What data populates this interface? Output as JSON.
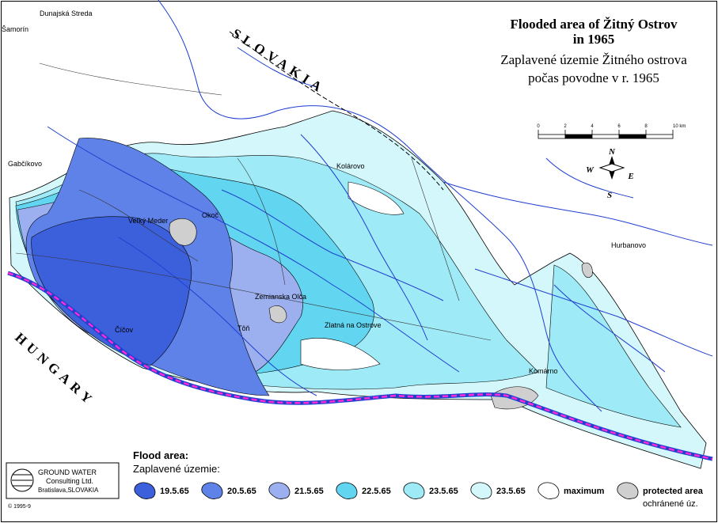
{
  "title": {
    "en_line1": "Flooded area of Žitný Ostrov",
    "en_line2": "in 1965",
    "sk_line1": "Zaplavené územie Žitného ostrova",
    "sk_line2": "počas povodne v r. 1965"
  },
  "countries": {
    "north": "SLOVAKIA",
    "south": "HUNGARY"
  },
  "scale": {
    "labels": [
      "0",
      "2",
      "4",
      "6",
      "8",
      "10 km"
    ]
  },
  "compass": {
    "n": "N",
    "e": "E",
    "s": "S",
    "w": "W"
  },
  "places": [
    "Gabčíkovo",
    "Veľký Meder",
    "Kolárovo",
    "Komárno",
    "Šamorín",
    "Okoč",
    "Zemianska Olča",
    "Tôň",
    "Číčov",
    "Zlatná na Ostrove",
    "Hurbanovo",
    "Dunajská Streda"
  ],
  "legend": {
    "title": "Flood area:",
    "subtitle": "Zaplavené územie:",
    "items": [
      {
        "label": "19.5.65",
        "color": "#3c5fdc"
      },
      {
        "label": "20.5.65",
        "color": "#5f82e8"
      },
      {
        "label": "21.5.65",
        "color": "#9cb0f0"
      },
      {
        "label": "22.5.65",
        "color": "#62d6f0"
      },
      {
        "label": "23.5.65",
        "color": "#9eeaf6"
      },
      {
        "label": "23.5.65",
        "color": "#d4f7fb"
      },
      {
        "label": "maximum",
        "color": "#ffffff"
      },
      {
        "label": "protected area",
        "sublabel": "ochránené úz.",
        "color": "#cfcfcf"
      }
    ]
  },
  "logo": {
    "line1": "GROUND WATER",
    "line2": "Consulting Ltd.",
    "line3": "Bratislava,SLOVAKIA"
  },
  "code": "© 1995-9"
}
